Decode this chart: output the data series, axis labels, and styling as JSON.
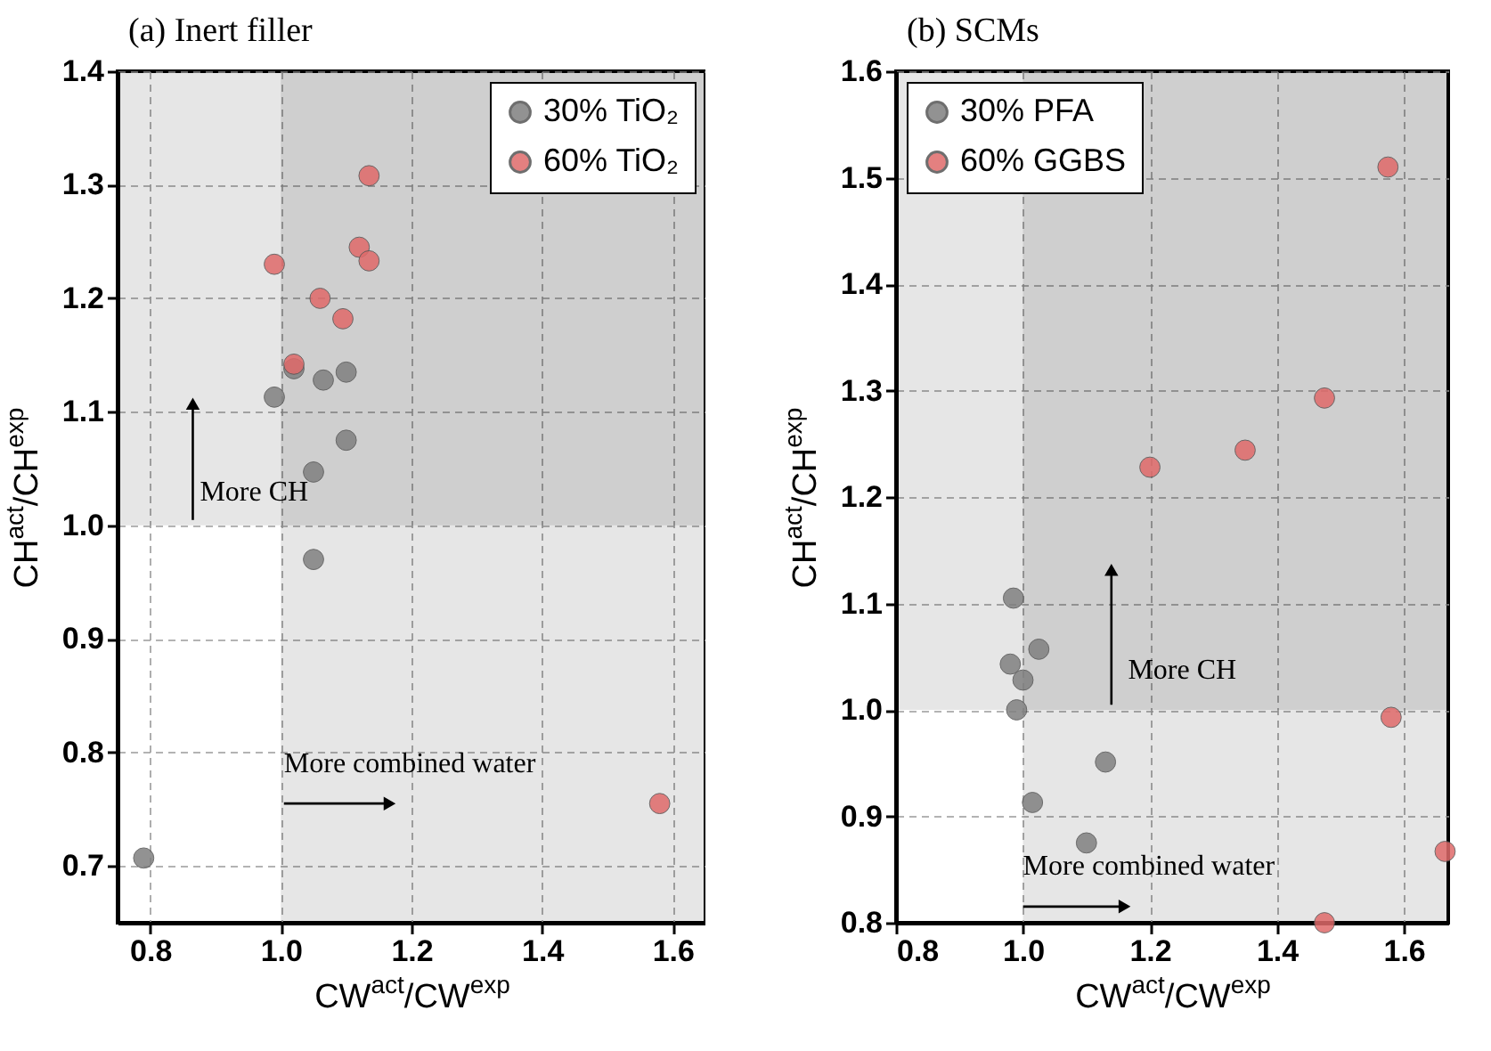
{
  "chart_data": [
    {
      "type": "scatter",
      "title": "(a) Inert filler",
      "xlabel": "CW$^{act}$/CW$^{exp}$",
      "ylabel": "CH$^{act}$/CH$^{exp}$",
      "series": [
        {
          "name": "30% TiO₂",
          "color": "#808080",
          "x": [
            0.79,
            0.99,
            1.05,
            1.05,
            1.065,
            1.1,
            1.1,
            1.02
          ],
          "values": [
            0.707,
            1.113,
            0.97,
            1.047,
            1.128,
            1.135,
            1.075,
            1.138
          ]
        },
        {
          "name": "60% TiO₂",
          "color": "#e06a6a",
          "x": [
            0.99,
            1.135,
            1.12,
            1.135,
            1.06,
            1.095,
            1.02,
            1.58
          ],
          "values": [
            1.23,
            1.308,
            1.245,
            1.233,
            1.2,
            1.182,
            1.142,
            0.755
          ]
        }
      ],
      "xlim": [
        0.75,
        1.65
      ],
      "xticks": [
        0.8,
        {
          "value": 1,
          "label": "1.0"
        },
        1.2,
        1.4,
        1.6
      ],
      "ylim": [
        0.65,
        1.4
      ],
      "yticks": [
        0.7,
        0.8,
        0.9,
        {
          "value": 1,
          "label": "1.0"
        },
        1.1,
        1.2,
        1.3,
        1.4
      ],
      "grid": true,
      "legend": "top right",
      "marker": "circle",
      "bands": [
        {
          "axis": "x",
          "from": 1.0,
          "to": 1.65,
          "color": "#e6e6e6"
        },
        {
          "axis": "y",
          "from": 1.0,
          "to": 1.4,
          "color": "#e6e6e6"
        }
      ],
      "annotations": [
        "More CH",
        "More combined water"
      ]
    },
    {
      "type": "scatter",
      "title": "(b) SCMs",
      "xlabel": "CW$^{act}$/CW$^{exp}$",
      "ylabel": "CH$^{act}$/CH$^{exp}$",
      "series": [
        {
          "name": "30% PFA",
          "color": "#808080",
          "x": [
            0.985,
            1.025,
            0.98,
            1.0,
            0.99,
            1.13,
            1.015,
            1.1
          ],
          "values": [
            1.105,
            1.057,
            1.043,
            1.028,
            1.0,
            0.951,
            0.913,
            0.875
          ]
        },
        {
          "name": "60% GGBS",
          "color": "#e06a6a",
          "x": [
            1.2,
            1.35,
            1.475,
            1.575,
            1.58,
            1.665,
            1.475
          ],
          "values": [
            1.228,
            1.244,
            1.293,
            1.51,
            0.993,
            0.867,
            0.8
          ]
        }
      ],
      "xlim": [
        0.8,
        1.67
      ],
      "xticks": [
        0.8,
        {
          "value": 1,
          "label": "1.0"
        },
        1.2,
        1.4,
        1.6
      ],
      "ylim": [
        0.8,
        1.6
      ],
      "yticks": [
        0.8,
        0.9,
        {
          "value": 1,
          "label": "1.0"
        },
        1.1,
        1.2,
        1.3,
        1.4,
        1.5,
        1.6
      ],
      "grid": true,
      "legend": "top left",
      "marker": "circle",
      "bands": [
        {
          "axis": "x",
          "from": 1.0,
          "to": 1.67,
          "color": "#e6e6e6"
        },
        {
          "axis": "y",
          "from": 1.0,
          "to": 1.6,
          "color": "#e6e6e6"
        }
      ],
      "annotations": [
        "More CH",
        "More combined water"
      ]
    }
  ]
}
